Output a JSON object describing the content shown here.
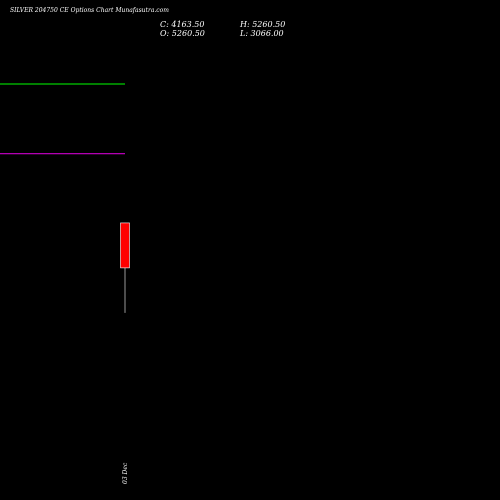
{
  "header": {
    "title": "SILVER 204750 CE Options Chart Munafasutra.com",
    "close_text": "C: 4163.50",
    "open_text": "O: 5260.50",
    "high_text": "H: 5260.50",
    "low_text": "L: 3066.00"
  },
  "chart_data": {
    "type": "candlestick",
    "title": "SILVER 204750 CE Options Chart Munafasutra.com",
    "candles": [
      {
        "date": "03 Dec",
        "open": 5260.5,
        "high": 5260.5,
        "low": 3066.0,
        "close": 4163.5
      }
    ],
    "reference_lines": [
      {
        "value": 8650,
        "color": "#00cc00"
      },
      {
        "value": 6950,
        "color": "#cc00cc"
      }
    ],
    "ylim": [
      -1500,
      10700
    ],
    "colors": {
      "background": "#000000",
      "bearish": "#ff0000",
      "wick": "#999999"
    },
    "x_tick_labels": [
      "03 Dec"
    ]
  }
}
